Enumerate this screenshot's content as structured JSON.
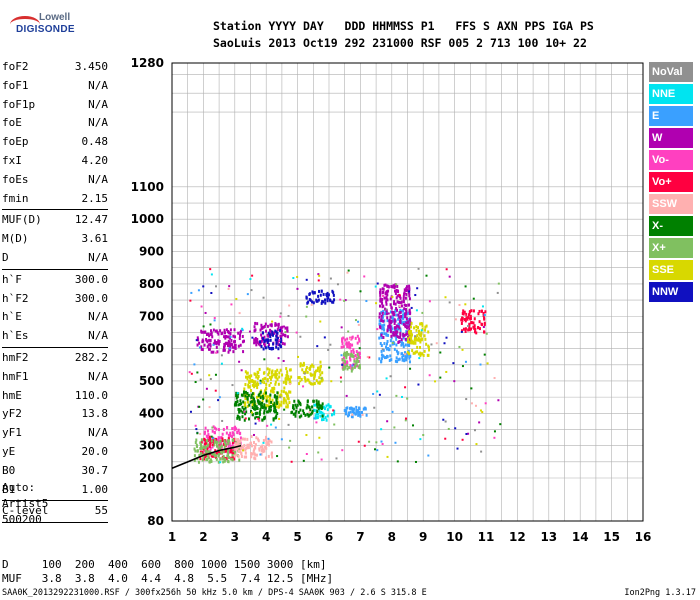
{
  "logo": {
    "line1": "Lowell",
    "line2": "DIGISONDE"
  },
  "header": {
    "line1": "Station YYYY DAY   DDD HHMMSS P1   FFS S AXN PPS IGA PS",
    "line2": "SaoLuis 2013 Oct19 292 231000 RSF 005 2 713 100 10+ 22"
  },
  "params": [
    {
      "name": "foF2",
      "value": "3.450"
    },
    {
      "name": "foF1",
      "value": "N/A"
    },
    {
      "name": "foF1p",
      "value": "N/A"
    },
    {
      "name": "foE",
      "value": "N/A"
    },
    {
      "name": "foEp",
      "value": "0.48"
    },
    {
      "name": "fxI",
      "value": "4.20"
    },
    {
      "name": "foEs",
      "value": "N/A"
    },
    {
      "name": "fmin",
      "value": "2.15",
      "sep": true
    },
    {
      "name": "MUF(D)",
      "value": "12.47"
    },
    {
      "name": "M(D)",
      "value": "3.61"
    },
    {
      "name": "D",
      "value": "N/A",
      "sep": true
    },
    {
      "name": "h`F",
      "value": "300.0"
    },
    {
      "name": "h`F2",
      "value": "300.0"
    },
    {
      "name": "h`E",
      "value": "N/A"
    },
    {
      "name": "h`Es",
      "value": "N/A",
      "sep": true
    },
    {
      "name": "hmF2",
      "value": "282.2"
    },
    {
      "name": "hmF1",
      "value": "N/A"
    },
    {
      "name": "hmE",
      "value": "110.0"
    },
    {
      "name": "yF2",
      "value": "13.8"
    },
    {
      "name": "yF1",
      "value": "N/A"
    },
    {
      "name": "yE",
      "value": "20.0"
    },
    {
      "name": "B0",
      "value": "30.7"
    },
    {
      "name": "B1",
      "value": "1.00",
      "sep": true
    },
    {
      "name": "C-level",
      "value": "55",
      "sep": true
    }
  ],
  "extra": [
    "Auto:",
    "Artist5",
    "500200"
  ],
  "footer": {
    "line1": "D     100  200  400  600  800 1000 1500 3000 [km]",
    "line2": "MUF   3.8  3.8  4.0  4.4  4.8  5.5  7.4 12.5 [MHz]"
  },
  "bottom": {
    "left": "SAA0K_2013292231000.RSF / 300fx256h 50 kHz 5.0 km / DPS-4 SAA0K 903 / 2.6 S 315.8 E",
    "right": "Ion2Png 1.3.17"
  },
  "legend": [
    {
      "label": "NoVal",
      "color": "#909090"
    },
    {
      "label": "NNE",
      "color": "#00e4f0"
    },
    {
      "label": "E",
      "color": "#3aa0ff"
    },
    {
      "label": "W",
      "color": "#b000b0"
    },
    {
      "label": "Vo-",
      "color": "#ff40c0"
    },
    {
      "label": "Vo+",
      "color": "#ff0040"
    },
    {
      "label": "SSW",
      "color": "#ffb0b0"
    },
    {
      "label": "X-",
      "color": "#008000"
    },
    {
      "label": "X+",
      "color": "#80c060"
    },
    {
      "label": "SSE",
      "color": "#d8d800"
    },
    {
      "label": "NNW",
      "color": "#1010c0"
    }
  ],
  "chart_data": {
    "type": "scatter",
    "xlim": [
      1,
      16
    ],
    "ylim": [
      80,
      1280
    ],
    "x_ticks": [
      1,
      2,
      3,
      4,
      5,
      6,
      7,
      8,
      9,
      10,
      11,
      12,
      13,
      14,
      15,
      16
    ],
    "y_ticks": [
      80,
      200,
      300,
      400,
      500,
      600,
      700,
      800,
      900,
      1000,
      1100,
      1280
    ],
    "grid": true,
    "clusters": [
      {
        "series": "W",
        "x": [
          1.8,
          3.3
        ],
        "y": [
          590,
          660
        ]
      },
      {
        "series": "W",
        "x": [
          3.6,
          4.7
        ],
        "y": [
          610,
          680
        ]
      },
      {
        "series": "NNW",
        "x": [
          3.8,
          4.5
        ],
        "y": [
          600,
          660
        ]
      },
      {
        "series": "SSE",
        "x": [
          3.3,
          4.8
        ],
        "y": [
          420,
          540
        ]
      },
      {
        "series": "X-",
        "x": [
          3.0,
          4.4
        ],
        "y": [
          380,
          470
        ]
      },
      {
        "series": "Vo-",
        "x": [
          2.0,
          3.2
        ],
        "y": [
          280,
          360
        ]
      },
      {
        "series": "Vo+",
        "x": [
          1.9,
          3.0
        ],
        "y": [
          260,
          330
        ]
      },
      {
        "series": "X+",
        "x": [
          1.7,
          3.2
        ],
        "y": [
          250,
          320
        ]
      },
      {
        "series": "SSW",
        "x": [
          3.0,
          4.2
        ],
        "y": [
          260,
          330
        ]
      },
      {
        "series": "E",
        "x": [
          7.6,
          8.6
        ],
        "y": [
          560,
          720
        ]
      },
      {
        "series": "W",
        "x": [
          7.6,
          8.6
        ],
        "y": [
          620,
          800
        ]
      },
      {
        "series": "SSE",
        "x": [
          8.5,
          9.2
        ],
        "y": [
          580,
          680
        ]
      },
      {
        "series": "Vo-",
        "x": [
          6.4,
          7.0
        ],
        "y": [
          540,
          640
        ]
      },
      {
        "series": "X+",
        "x": [
          6.4,
          7.0
        ],
        "y": [
          530,
          590
        ]
      },
      {
        "series": "NNE",
        "x": [
          5.5,
          6.2
        ],
        "y": [
          380,
          430
        ]
      },
      {
        "series": "E",
        "x": [
          6.5,
          7.2
        ],
        "y": [
          390,
          420
        ]
      },
      {
        "series": "NNW",
        "x": [
          5.2,
          6.2
        ],
        "y": [
          740,
          780
        ]
      },
      {
        "series": "X-",
        "x": [
          4.8,
          5.8
        ],
        "y": [
          390,
          440
        ]
      },
      {
        "series": "SSE",
        "x": [
          5.0,
          5.8
        ],
        "y": [
          490,
          560
        ]
      },
      {
        "series": "Vo+",
        "x": [
          10.2,
          11.0
        ],
        "y": [
          650,
          720
        ]
      }
    ],
    "trace": {
      "x": [
        1.0,
        1.5,
        2.0,
        2.5,
        3.0,
        3.2
      ],
      "y": [
        230,
        250,
        270,
        285,
        295,
        300
      ]
    }
  }
}
